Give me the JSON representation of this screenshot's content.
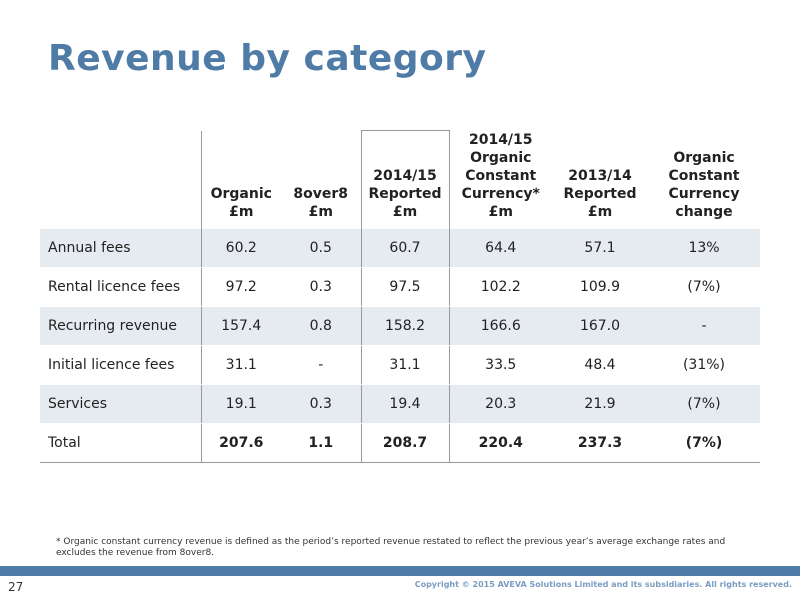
{
  "title": "Revenue by category",
  "table": {
    "headers": [
      "",
      "Organic\n£m",
      "8over8\n£m",
      "2014/15\nReported\n£m",
      "2014/15\nOrganic\nConstant\nCurrency*\n£m",
      "2013/14\nReported\n£m",
      "Organic\nConstant\nCurrency\nchange"
    ],
    "rows": [
      {
        "label": "Annual fees",
        "cells": [
          "60.2",
          "0.5",
          "60.7",
          "64.4",
          "57.1",
          "13%"
        ]
      },
      {
        "label": "Rental licence fees",
        "cells": [
          "97.2",
          "0.3",
          "97.5",
          "102.2",
          "109.9",
          "(7%)"
        ]
      },
      {
        "label": "Recurring revenue",
        "cells": [
          "157.4",
          "0.8",
          "158.2",
          "166.6",
          "167.0",
          "-"
        ]
      },
      {
        "label": "Initial licence fees",
        "cells": [
          "31.1",
          "-",
          "31.1",
          "33.5",
          "48.4",
          "(31%)"
        ]
      },
      {
        "label": "Services",
        "cells": [
          "19.1",
          "0.3",
          "19.4",
          "20.3",
          "21.9",
          "(7%)"
        ]
      },
      {
        "label": "Total",
        "cells": [
          "207.6",
          "1.1",
          "208.7",
          "220.4",
          "237.3",
          "(7%)"
        ]
      }
    ]
  },
  "footnote": "* Organic constant currency revenue is defined as the period’s reported revenue restated to reflect the previous year’s average exchange rates and excludes the revenue from 8over8.",
  "page_number": "27",
  "copyright": "Copyright © 2015 AVEVA Solutions Limited and its subsidiaries. All rights reserved.",
  "colors": {
    "accent": "#4f7ba7",
    "row_shade": "#e6ebf1"
  }
}
